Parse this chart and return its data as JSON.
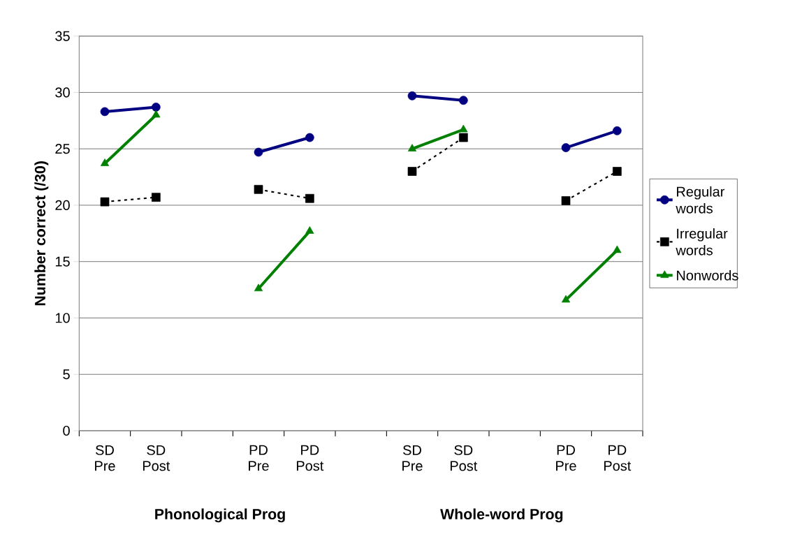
{
  "chart_data": {
    "type": "line",
    "ylabel": "Number correct (/30)",
    "categories": [
      "SD Pre",
      "SD Post",
      null,
      "PD Pre",
      "PD Post",
      null,
      "SD Pre",
      "SD Post",
      null,
      "PD Pre",
      "PD Post"
    ],
    "series": [
      {
        "name": "Regular words",
        "color": "#000080",
        "marker": "circle",
        "line_style": "solid",
        "values": [
          28.3,
          28.7,
          null,
          24.7,
          26.0,
          null,
          29.7,
          29.3,
          null,
          25.1,
          26.6
        ]
      },
      {
        "name": "Irregular words",
        "color": "#000000",
        "marker": "square",
        "line_style": "dashed",
        "values": [
          20.3,
          20.7,
          null,
          21.4,
          20.6,
          null,
          23.0,
          26.0,
          null,
          20.4,
          23.0
        ]
      },
      {
        "name": "Nonwords",
        "color": "#008000",
        "marker": "triangle",
        "line_style": "solid",
        "values": [
          23.7,
          28.0,
          null,
          12.6,
          17.7,
          null,
          25.0,
          26.7,
          null,
          11.6,
          16.0
        ]
      }
    ],
    "ylim": [
      0,
      35
    ],
    "yticks": [
      0,
      5,
      10,
      15,
      20,
      25,
      30,
      35
    ],
    "grid": "y",
    "legend": "right",
    "annotations": [
      "Phonological Prog",
      "Whole-word Prog"
    ]
  }
}
